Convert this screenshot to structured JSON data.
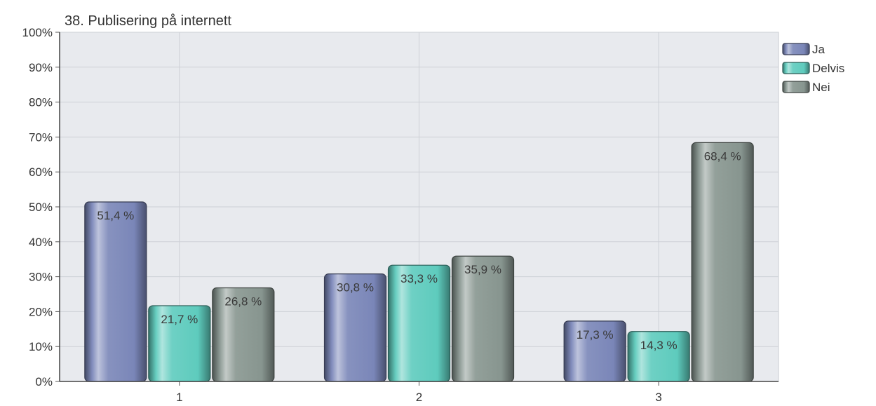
{
  "chart_data": {
    "type": "bar",
    "title": "38. Publisering på internett",
    "xlabel": "",
    "ylabel": "",
    "categories": [
      "1",
      "2",
      "3"
    ],
    "series": [
      {
        "name": "Ja",
        "values": [
          51.4,
          30.8,
          17.3
        ],
        "labels": [
          "51,4 %",
          "30,8 %",
          "17,3 %"
        ],
        "color": "#7a86b8"
      },
      {
        "name": "Delvis",
        "values": [
          21.7,
          33.3,
          14.3
        ],
        "labels": [
          "21,7 %",
          "33,3 %",
          "14,3 %"
        ],
        "color": "#5ecbbd"
      },
      {
        "name": "Nei",
        "values": [
          26.8,
          35.9,
          68.4
        ],
        "labels": [
          "26,8 %",
          "35,9 %",
          "68,4 %"
        ],
        "color": "#87958f"
      }
    ],
    "ylim": [
      0,
      100
    ],
    "yticks": [
      "0%",
      "10%",
      "20%",
      "30%",
      "40%",
      "50%",
      "60%",
      "70%",
      "80%",
      "90%",
      "100%"
    ],
    "grid": true,
    "legend_position": "right",
    "plot_background": "#e8eaee"
  }
}
